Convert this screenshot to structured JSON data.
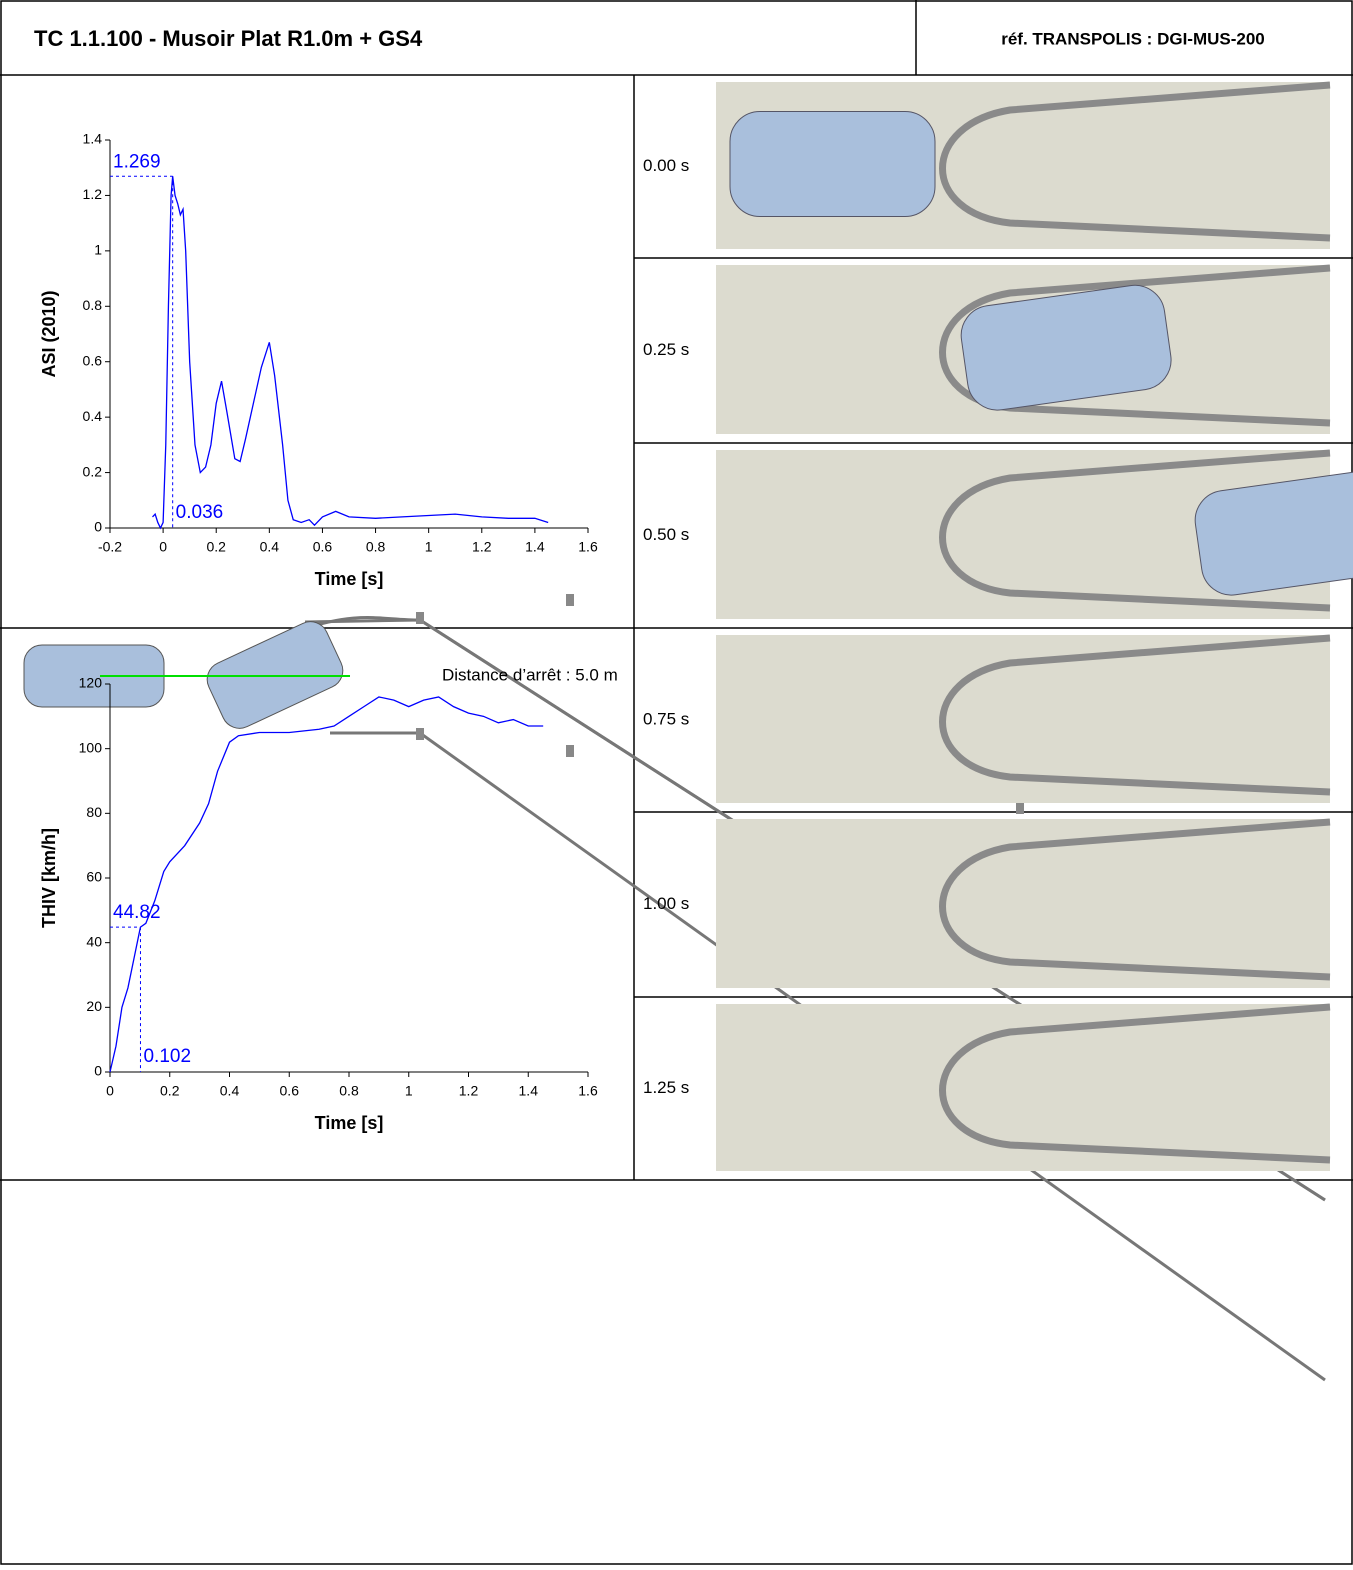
{
  "header": {
    "title": "TC 1.1.100 - Musoir Plat R1.0m + GS4",
    "reference": "réf. TRANSPOLIS : DGI-MUS-200"
  },
  "chart_data": [
    {
      "type": "line",
      "x_label": "Time [s]",
      "y_label": "ASI (2010)",
      "x": [
        -0.04,
        -0.03,
        -0.02,
        -0.01,
        0,
        0.01,
        0.02,
        0.03,
        0.036,
        0.045,
        0.055,
        0.065,
        0.075,
        0.085,
        0.1,
        0.12,
        0.14,
        0.16,
        0.18,
        0.2,
        0.22,
        0.24,
        0.27,
        0.29,
        0.31,
        0.34,
        0.37,
        0.4,
        0.42,
        0.45,
        0.47,
        0.49,
        0.52,
        0.55,
        0.57,
        0.6,
        0.65,
        0.7,
        0.8,
        0.9,
        1.0,
        1.1,
        1.2,
        1.3,
        1.4,
        1.45
      ],
      "series": [
        {
          "color": "#0000ff",
          "values": [
            0.04,
            0.05,
            0.02,
            0,
            0.02,
            0.3,
            0.8,
            1.2,
            1.269,
            1.2,
            1.17,
            1.13,
            1.15,
            1.0,
            0.6,
            0.3,
            0.2,
            0.22,
            0.3,
            0.45,
            0.53,
            0.42,
            0.25,
            0.24,
            0.32,
            0.45,
            0.58,
            0.67,
            0.55,
            0.3,
            0.1,
            0.03,
            0.02,
            0.03,
            0.01,
            0.04,
            0.06,
            0.04,
            0.035,
            0.04,
            0.045,
            0.05,
            0.04,
            0.035,
            0.035,
            0.02
          ]
        }
      ],
      "xlim": [
        -0.2,
        1.6
      ],
      "xticks": [
        -0.2,
        0,
        0.2,
        0.4,
        0.6,
        0.8,
        1,
        1.2,
        1.4,
        1.6
      ],
      "ylim": [
        0,
        1.4
      ],
      "yticks": [
        0,
        0.2,
        0.4,
        0.6,
        0.8,
        1,
        1.2,
        1.4
      ],
      "annotation": {
        "x": 0.036,
        "y": 1.269
      }
    },
    {
      "type": "line",
      "x_label": "Time [s]",
      "y_label": "THIV [km/h]",
      "x": [
        0,
        0.02,
        0.04,
        0.06,
        0.08,
        0.1,
        0.102,
        0.12,
        0.15,
        0.18,
        0.2,
        0.25,
        0.3,
        0.33,
        0.36,
        0.4,
        0.43,
        0.5,
        0.6,
        0.65,
        0.7,
        0.75,
        0.8,
        0.85,
        0.9,
        0.95,
        1.0,
        1.05,
        1.1,
        1.15,
        1.2,
        1.25,
        1.3,
        1.35,
        1.4,
        1.45
      ],
      "series": [
        {
          "color": "#0000ff",
          "values": [
            0,
            8,
            20,
            26,
            35,
            44,
            44.82,
            46,
            53,
            62,
            65,
            70,
            77,
            83,
            93,
            102,
            104,
            105,
            105,
            105.5,
            106,
            107,
            110,
            113,
            116,
            115,
            113,
            115,
            116,
            113,
            111,
            110,
            108,
            109,
            107,
            107
          ]
        }
      ],
      "xlim": [
        0,
        1.6
      ],
      "xticks": [
        0,
        0.2,
        0.4,
        0.6,
        0.8,
        1,
        1.2,
        1.4,
        1.6
      ],
      "ylim": [
        0,
        120
      ],
      "yticks": [
        0,
        20,
        40,
        60,
        80,
        100,
        120
      ],
      "annotation": {
        "x": 0.102,
        "y": 44.82
      }
    }
  ],
  "frames": [
    "0.00 s",
    "0.25 s",
    "0.50 s",
    "0.75 s",
    "1.00 s",
    "1.25 s"
  ],
  "bottom": {
    "caption": "Distance d’arrêt : 5.0 m"
  }
}
